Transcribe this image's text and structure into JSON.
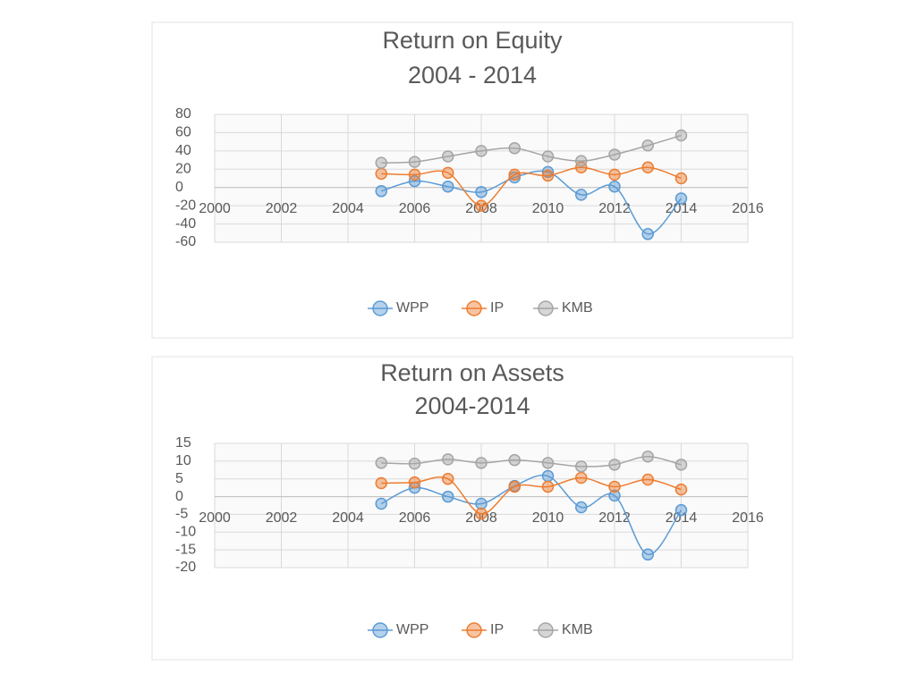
{
  "chart_data": [
    {
      "type": "line",
      "title": "Return on Equity",
      "subtitle": "2004 - 2014",
      "x": [
        2005,
        2006,
        2007,
        2008,
        2009,
        2010,
        2011,
        2012,
        2013,
        2014
      ],
      "series": [
        {
          "name": "WPP",
          "color": "#5b9bd5",
          "values": [
            -4,
            7,
            1,
            -5,
            11,
            17,
            -8,
            1,
            -51,
            -12
          ]
        },
        {
          "name": "IP",
          "color": "#ed7d31",
          "values": [
            15,
            14,
            16,
            -20,
            14,
            13,
            22,
            14,
            22,
            10
          ]
        },
        {
          "name": "KMB",
          "color": "#a5a5a5",
          "values": [
            27,
            28,
            34,
            40,
            43,
            34,
            29,
            36,
            46,
            57
          ]
        }
      ],
      "xlim": [
        2000,
        2016
      ],
      "xticks": [
        2000,
        2002,
        2004,
        2006,
        2008,
        2010,
        2012,
        2014,
        2016
      ],
      "ylim": [
        -60,
        80
      ],
      "yticks": [
        -60,
        -40,
        -20,
        0,
        20,
        40,
        60,
        80
      ],
      "grid": true,
      "legend": "bottom"
    },
    {
      "type": "line",
      "title": "Return on Assets",
      "subtitle": "2004-2014",
      "x": [
        2005,
        2006,
        2007,
        2008,
        2009,
        2010,
        2011,
        2012,
        2013,
        2014
      ],
      "series": [
        {
          "name": "WPP",
          "color": "#5b9bd5",
          "values": [
            -2,
            2.5,
            0,
            -2,
            3,
            5.8,
            -3,
            0.3,
            -16.3,
            -3.8
          ]
        },
        {
          "name": "IP",
          "color": "#ed7d31",
          "values": [
            3.8,
            4,
            5,
            -4.8,
            2.8,
            2.8,
            5.3,
            2.8,
            4.8,
            2
          ]
        },
        {
          "name": "KMB",
          "color": "#a5a5a5",
          "values": [
            9.5,
            9.3,
            10.5,
            9.5,
            10.3,
            9.5,
            8.5,
            9,
            11.3,
            9
          ]
        }
      ],
      "xlim": [
        2000,
        2016
      ],
      "xticks": [
        2000,
        2002,
        2004,
        2006,
        2008,
        2010,
        2012,
        2014,
        2016
      ],
      "ylim": [
        -20,
        15
      ],
      "yticks": [
        -20,
        -15,
        -10,
        -5,
        0,
        5,
        10,
        15
      ],
      "grid": true,
      "legend": "bottom"
    }
  ]
}
